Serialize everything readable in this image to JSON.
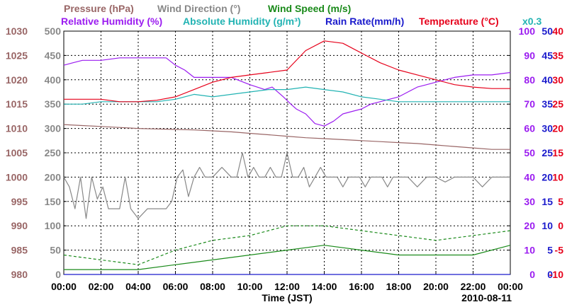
{
  "chart_data": {
    "type": "line",
    "date": "2010-08-11",
    "xlabel": "Time (JST)",
    "x_ticks": [
      "00:00",
      "02:00",
      "04:00",
      "06:00",
      "08:00",
      "10:00",
      "12:00",
      "14:00",
      "16:00",
      "18:00",
      "20:00",
      "22:00",
      "00:00"
    ],
    "legend": {
      "row1": [
        {
          "text": "Pressure (hPa)",
          "color": "#996666"
        },
        {
          "text": "Wind Direction (°)",
          "color": "#888888"
        },
        {
          "text": "Wind Speed (m/s)",
          "color": "#1a8a1a"
        }
      ],
      "row2": [
        {
          "text": "Relative Humidity (%)",
          "color": "#9b1cf0"
        },
        {
          "text": "Absolute Humidity (g/m³)",
          "color": "#22b3b3"
        },
        {
          "text": "Rain Rate(mm/h)",
          "color": "#1a1acc"
        },
        {
          "text": "Temperature (°C)",
          "color": "#e6001a"
        }
      ],
      "scale_note": {
        "text": "x0.3",
        "color": "#22b3b3"
      }
    },
    "axes": {
      "pressure": {
        "label": "Pressure (hPa)",
        "color": "#996666",
        "ticks": [
          "1030",
          "1025",
          "1020",
          "1015",
          "1010",
          "1005",
          "1000",
          "995",
          "990",
          "985",
          "980"
        ],
        "ylim": [
          980,
          1030
        ]
      },
      "wind_direction": {
        "label": "Wind Direction (°)",
        "color": "#888888",
        "ticks": [
          "500",
          "450",
          "400",
          "350",
          "300",
          "250",
          "200",
          "150",
          "100",
          "50",
          "0"
        ],
        "ylim": [
          0,
          500
        ]
      },
      "relative_humidity": {
        "label": "Relative Humidity (%)",
        "color": "#9b1cf0",
        "ticks": [
          "100",
          "90",
          "80",
          "70",
          "60",
          "50",
          "40",
          "30",
          "20",
          "10",
          "0"
        ],
        "ylim": [
          0,
          100
        ]
      },
      "rain_rate": {
        "label": "Rain Rate (mm/h)",
        "color": "#1a1acc",
        "ticks": [
          "50",
          "45",
          "40",
          "35",
          "30",
          "25",
          "20",
          "15",
          "10",
          "5",
          "0"
        ],
        "ylim": [
          0,
          50
        ]
      },
      "temperature": {
        "label": "Temperature (°C)",
        "color": "#e6001a",
        "ticks": [
          "40",
          "35",
          "30",
          "25",
          "20",
          "15",
          "10",
          "5",
          "0",
          "-5",
          "-10"
        ],
        "ylim": [
          -10,
          40
        ]
      }
    },
    "series": [
      {
        "name": "Pressure (hPa)",
        "color": "#996666",
        "unit": "hPa",
        "x": [
          0,
          1,
          2,
          3,
          4,
          5,
          6,
          7,
          8,
          9,
          10,
          11,
          12,
          13,
          14,
          15,
          16,
          17,
          18,
          19,
          20,
          21,
          22,
          23,
          24
        ],
        "y": [
          1010.8,
          1010.6,
          1010.4,
          1010.2,
          1010.0,
          1009.9,
          1009.8,
          1009.7,
          1009.5,
          1009.3,
          1009.0,
          1008.7,
          1008.4,
          1008.1,
          1007.9,
          1007.7,
          1007.5,
          1007.3,
          1007.1,
          1006.9,
          1006.6,
          1006.3,
          1006.0,
          1005.7,
          1005.7
        ]
      },
      {
        "name": "Wind Direction (°)",
        "color": "#888888",
        "unit": "°",
        "x": [
          0,
          0.3,
          0.6,
          0.9,
          1.2,
          1.5,
          1.8,
          2.1,
          2.4,
          2.7,
          3.0,
          3.3,
          3.6,
          4.0,
          4.5,
          5.0,
          5.5,
          5.8,
          6.1,
          6.4,
          6.7,
          7.0,
          7.3,
          7.6,
          8.0,
          8.5,
          9.0,
          9.3,
          9.6,
          9.9,
          10.2,
          10.5,
          10.8,
          11.1,
          11.4,
          11.7,
          12.0,
          12.3,
          12.6,
          12.9,
          13.2,
          13.5,
          13.8,
          14.1,
          14.4,
          14.7,
          15.0,
          15.3,
          15.6,
          15.9,
          16.2,
          16.5,
          16.8,
          17.1,
          17.4,
          17.7,
          18.0,
          18.5,
          19.0,
          19.5,
          20.0,
          20.5,
          21.0,
          21.5,
          22.0,
          22.5,
          23.0,
          23.5,
          24.0
        ],
        "y": [
          200,
          180,
          135,
          200,
          115,
          200,
          155,
          180,
          135,
          135,
          135,
          200,
          135,
          115,
          135,
          135,
          135,
          150,
          200,
          215,
          160,
          200,
          220,
          200,
          200,
          220,
          200,
          200,
          250,
          200,
          220,
          200,
          200,
          220,
          200,
          200,
          250,
          200,
          200,
          220,
          180,
          200,
          220,
          200,
          200,
          200,
          180,
          200,
          200,
          200,
          180,
          200,
          200,
          200,
          180,
          200,
          200,
          200,
          180,
          200,
          200,
          190,
          200,
          200,
          200,
          180,
          200,
          200,
          200
        ]
      },
      {
        "name": "Wind Speed (m/s) - mean",
        "color": "#1a8a1a",
        "unit": "m/s",
        "x": [
          0,
          2,
          4,
          6,
          8,
          10,
          12,
          14,
          16,
          18,
          20,
          22,
          24
        ],
        "y": [
          1,
          1,
          1,
          2,
          3,
          4,
          5,
          6,
          5,
          4,
          4,
          4,
          6
        ]
      },
      {
        "name": "Wind Speed (m/s) - gust",
        "color": "#1a8a1a",
        "unit": "m/s",
        "style": "dashed",
        "x": [
          0,
          2,
          4,
          6,
          8,
          10,
          12,
          14,
          16,
          18,
          20,
          22,
          24
        ],
        "y": [
          4,
          3,
          2,
          5,
          7,
          8,
          10,
          10,
          9,
          8,
          7,
          8,
          9
        ]
      },
      {
        "name": "Relative Humidity (%)",
        "color": "#9b1cf0",
        "unit": "%",
        "x": [
          0,
          0.5,
          1.0,
          1.5,
          2,
          3,
          4,
          5,
          5.5,
          6,
          6.5,
          7,
          8,
          9,
          10,
          10.8,
          11.2,
          11.8,
          12.2,
          12.5,
          13,
          13.5,
          14,
          14.5,
          15,
          15.5,
          16,
          16.5,
          17,
          17.5,
          18,
          18.5,
          19,
          19.5,
          20,
          20.5,
          21,
          22,
          23,
          24
        ],
        "y": [
          86,
          87,
          88,
          88,
          88,
          89,
          89,
          89,
          89,
          86,
          84,
          81,
          81,
          81,
          78,
          76,
          77,
          73,
          70,
          68,
          66,
          62,
          61,
          63,
          66,
          67,
          68,
          70,
          71,
          72,
          73,
          75,
          77,
          78,
          79,
          80,
          81,
          82,
          82,
          83
        ]
      },
      {
        "name": "Absolute Humidity (g/m³) x0.3",
        "color": "#22b3b3",
        "unit": "g/m³",
        "x": [
          0,
          1,
          2,
          3,
          4,
          5,
          6,
          7,
          8,
          9,
          10,
          11,
          12,
          13,
          14,
          15,
          16,
          17,
          18,
          19,
          20,
          21,
          22,
          23,
          24
        ],
        "y": [
          70,
          70,
          71,
          71,
          71,
          71,
          72,
          74,
          73,
          74,
          75,
          76,
          76,
          77,
          76,
          75,
          73,
          72,
          71,
          71,
          71,
          71,
          71,
          71,
          71
        ]
      },
      {
        "name": "Rain Rate (mm/h)",
        "color": "#1a1acc",
        "unit": "mm/h",
        "x": [
          0,
          24
        ],
        "y": [
          0,
          0
        ]
      },
      {
        "name": "Temperature (°C)",
        "color": "#e6001a",
        "unit": "°C",
        "x": [
          0,
          1,
          2,
          3,
          4,
          5,
          6,
          7,
          8,
          9,
          10,
          11,
          12,
          13,
          14,
          15,
          16,
          17,
          18,
          19,
          20,
          21,
          22,
          23,
          24
        ],
        "y": [
          26,
          26,
          26,
          25.5,
          25.5,
          25.8,
          26.5,
          28,
          29.5,
          30.5,
          31,
          31.5,
          32,
          36,
          38,
          37.5,
          35.5,
          33.5,
          32,
          31,
          30,
          29,
          28.5,
          28.2,
          28.2
        ]
      }
    ]
  }
}
